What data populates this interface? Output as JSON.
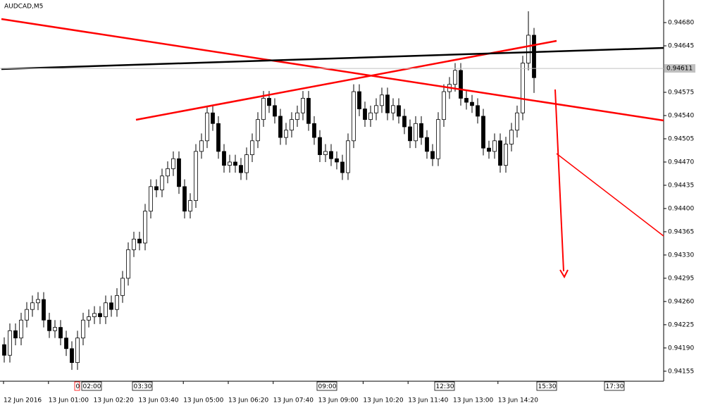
{
  "chart_data": {
    "type": "candlestick",
    "title": "AUDCAD,M5",
    "open": [
      0.94195,
      0.94179,
      0.94216,
      0.94205,
      0.94232,
      0.94248,
      0.94258,
      0.94263,
      0.94232,
      0.94216,
      0.94221,
      0.94205,
      0.94189,
      0.94168,
      0.94205,
      0.94232,
      0.94237,
      0.94242,
      0.94237,
      0.94258,
      0.94248,
      0.94269,
      0.94295,
      0.94338,
      0.94354,
      0.94348,
      0.94396,
      0.94433,
      0.94428,
      0.94449,
      0.9446,
      0.94475,
      0.94433,
      0.94396,
      0.94412,
      0.94486,
      0.94502,
      0.94544,
      0.94528,
      0.94486,
      0.94465,
      0.9447,
      0.94465,
      0.94454,
      0.94481,
      0.94502,
      0.94534,
      0.94566,
      0.94555,
      0.94539,
      0.94507,
      0.94518,
      0.94534,
      0.94544,
      0.94566,
      0.94528,
      0.94507,
      0.94481,
      0.94486,
      0.94475,
      0.9447,
      0.94454,
      0.94502,
      0.94576,
      0.9455,
      0.94534,
      0.94544,
      0.94555,
      0.94571,
      0.94544,
      0.94555,
      0.94539,
      0.94523,
      0.94502,
      0.94528,
      0.94507,
      0.94486,
      0.94475,
      0.94534,
      0.94576,
      0.94587,
      0.94608,
      0.94566,
      0.9456,
      0.94555,
      0.94539,
      0.94491,
      0.94486,
      0.94502,
      0.94465,
      0.94497,
      0.94518,
      0.94544,
      0.94619,
      0.94661
    ],
    "high": [
      0.94206,
      0.94227,
      0.94227,
      0.94243,
      0.94259,
      0.94269,
      0.94274,
      0.94274,
      0.94243,
      0.94232,
      0.94232,
      0.94216,
      0.942,
      0.94216,
      0.94243,
      0.94248,
      0.94253,
      0.94253,
      0.94269,
      0.94269,
      0.9428,
      0.94306,
      0.94349,
      0.94365,
      0.94365,
      0.94407,
      0.94444,
      0.94444,
      0.9446,
      0.94471,
      0.94486,
      0.94486,
      0.94444,
      0.94423,
      0.94497,
      0.94513,
      0.94555,
      0.94555,
      0.94539,
      0.94497,
      0.94481,
      0.94481,
      0.94476,
      0.94492,
      0.94513,
      0.94545,
      0.94577,
      0.94577,
      0.94566,
      0.9455,
      0.94529,
      0.94545,
      0.94555,
      0.94577,
      0.94577,
      0.94539,
      0.94518,
      0.94497,
      0.94497,
      0.94486,
      0.94481,
      0.94513,
      0.94587,
      0.94587,
      0.94561,
      0.94555,
      0.94566,
      0.94582,
      0.94582,
      0.94566,
      0.94566,
      0.9455,
      0.94534,
      0.94539,
      0.94539,
      0.94518,
      0.94497,
      0.94545,
      0.94587,
      0.94598,
      0.94619,
      0.94619,
      0.94577,
      0.94571,
      0.94566,
      0.9455,
      0.94502,
      0.94513,
      0.94513,
      0.94508,
      0.94529,
      0.94555,
      0.9463,
      0.94697,
      0.94672
    ],
    "low": [
      0.94168,
      0.94168,
      0.94194,
      0.94194,
      0.94221,
      0.94237,
      0.94247,
      0.94221,
      0.94205,
      0.94205,
      0.94194,
      0.94178,
      0.94157,
      0.94157,
      0.94194,
      0.94221,
      0.94226,
      0.94226,
      0.94226,
      0.94237,
      0.94237,
      0.94258,
      0.94284,
      0.94327,
      0.94337,
      0.94337,
      0.94385,
      0.94417,
      0.94417,
      0.94438,
      0.94449,
      0.94422,
      0.94385,
      0.94385,
      0.94401,
      0.94475,
      0.94491,
      0.94517,
      0.94475,
      0.94454,
      0.94454,
      0.94454,
      0.94443,
      0.94443,
      0.9447,
      0.94491,
      0.94523,
      0.94544,
      0.94528,
      0.94496,
      0.94496,
      0.94507,
      0.94523,
      0.94533,
      0.94517,
      0.94496,
      0.9447,
      0.9447,
      0.94464,
      0.94459,
      0.94443,
      0.94443,
      0.94491,
      0.94539,
      0.94523,
      0.94523,
      0.94533,
      0.94544,
      0.94533,
      0.94533,
      0.94528,
      0.94512,
      0.94491,
      0.94491,
      0.94496,
      0.94475,
      0.94464,
      0.94464,
      0.94523,
      0.94565,
      0.94576,
      0.94555,
      0.94549,
      0.94544,
      0.94528,
      0.9448,
      0.94475,
      0.94475,
      0.94454,
      0.94454,
      0.94486,
      0.94507,
      0.94533,
      0.94608,
      0.94574
    ],
    "close": [
      0.94179,
      0.94216,
      0.94205,
      0.94232,
      0.94248,
      0.94258,
      0.94263,
      0.94232,
      0.94216,
      0.94221,
      0.94205,
      0.94189,
      0.94168,
      0.94205,
      0.94232,
      0.94237,
      0.94242,
      0.94237,
      0.94258,
      0.94248,
      0.94269,
      0.94295,
      0.94338,
      0.94354,
      0.94348,
      0.94396,
      0.94433,
      0.94428,
      0.94449,
      0.9446,
      0.94475,
      0.94433,
      0.94396,
      0.94412,
      0.94486,
      0.94502,
      0.94544,
      0.94528,
      0.94486,
      0.94465,
      0.9447,
      0.94465,
      0.94454,
      0.94481,
      0.94502,
      0.94534,
      0.94566,
      0.94555,
      0.94539,
      0.94507,
      0.94518,
      0.94534,
      0.94544,
      0.94566,
      0.94528,
      0.94507,
      0.94481,
      0.94486,
      0.94475,
      0.9447,
      0.94454,
      0.94502,
      0.94576,
      0.9455,
      0.94534,
      0.94544,
      0.94555,
      0.94571,
      0.94544,
      0.94555,
      0.94539,
      0.94523,
      0.94502,
      0.94528,
      0.94507,
      0.94486,
      0.94475,
      0.94534,
      0.94576,
      0.94587,
      0.94608,
      0.94566,
      0.9456,
      0.94555,
      0.94539,
      0.94491,
      0.94486,
      0.94502,
      0.94465,
      0.94497,
      0.94518,
      0.94544,
      0.94619,
      0.94661,
      0.94597
    ],
    "current_price": 0.94611,
    "ylim": [
      0.94141,
      0.94714
    ],
    "yticks": [
      0.94155,
      {
        "value": 0.9419,
        "label": "0.94190"
      },
      0.94225,
      {
        "value": 0.9426,
        "label": "0.94260"
      },
      0.94295,
      {
        "value": 0.9433,
        "label": "0.94330"
      },
      0.94365,
      {
        "value": 0.944,
        "label": "0.94400"
      },
      0.94435,
      {
        "value": 0.9447,
        "label": "0.94470"
      },
      0.94505,
      {
        "value": 0.9454,
        "label": "0.94540"
      },
      0.94575,
      0.94645,
      {
        "value": 0.9468,
        "label": "0.94680"
      }
    ],
    "x_labels": [
      "12 Jun 2016",
      "13 Jun 01:00",
      "13 Jun 02:20",
      "13 Jun 03:40",
      "13 Jun 05:00",
      "13 Jun 06:20",
      "13 Jun 07:40",
      "13 Jun 09:00",
      "13 Jun 10:20",
      "13 Jun 11:40",
      "13 Jun 13:00",
      "13 Jun 14:20"
    ],
    "time_markers": [
      "0",
      "02:00",
      "03:30",
      "09:00",
      "12:30",
      "15:30",
      "17:30"
    ]
  }
}
